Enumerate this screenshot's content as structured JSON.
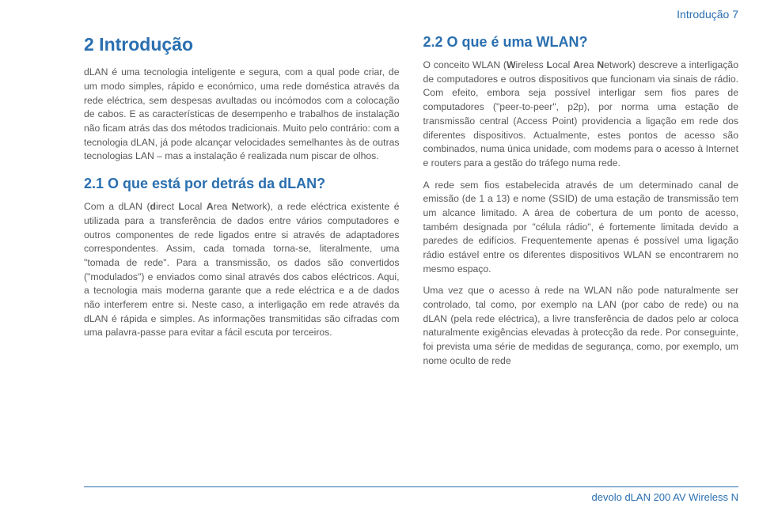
{
  "header": {
    "section": "Introdução",
    "page_number": "7"
  },
  "h1": "2 Introdução",
  "p1": "dLAN é uma tecnologia inteligente e segura, com a qual pode criar, de um modo simples, rápido e económico, uma rede doméstica através da rede eléctrica, sem despesas avultadas ou incómodos com a colocação de cabos. E as características de desempenho e trabalhos de instalação não ficam atrás das dos métodos tradicionais. Muito pelo contrário: com a tecnologia dLAN, já pode alcançar velocidades semelhantes às de outras tecnologias LAN – mas a instalação é realizada num piscar de olhos.",
  "h2a": "2.1 O que está por detrás da dLAN?",
  "p2_pre": "Com a dLAN (",
  "p2_d": "d",
  "p2_mid1": "irect ",
  "p2_l": "L",
  "p2_mid2": "ocal ",
  "p2_a": "A",
  "p2_mid3": "rea ",
  "p2_n": "N",
  "p2_post": "etwork), a rede eléctrica existente é utilizada para a transferência de dados entre vários computadores e outros componentes de rede ligados entre si através de adaptadores correspondentes. Assim, cada tomada torna-se, literalmente, uma \"tomada de rede\". Para a transmissão, os dados são convertidos (\"modulados\") e enviados como sinal através dos cabos eléctricos. Aqui, a tecnologia mais moderna garante que a rede eléctrica e a de dados não interferem entre si. Neste caso, a interligação em rede através da dLAN é rápida e simples. As informações transmitidas são cifradas com uma palavra-passe para evitar a fácil escuta por terceiros.",
  "h2b": "2.2 O que é uma WLAN?",
  "p3_pre": "O conceito WLAN (",
  "p3_w": "W",
  "p3_mid1": "ireless ",
  "p3_l": "L",
  "p3_mid2": "ocal ",
  "p3_a": "A",
  "p3_mid3": "rea ",
  "p3_n": "N",
  "p3_post": "etwork) descreve a interligação de computadores e outros dispositivos que funcionam via sinais de rádio. Com efeito, embora seja possível interligar sem fios pares de computadores (\"peer-to-peer\", p2p), por norma uma estação de transmissão central (Access Point) providencia a ligação em rede dos diferentes dispositivos. Actualmente, estes pontos de acesso são combinados, numa única unidade, com modems para o acesso à Internet e routers para a gestão do tráfego numa rede.",
  "p4": "A rede sem fios estabelecida através de um determinado canal de emissão (de 1 a 13) e nome (SSID) de uma estação de transmissão tem um alcance limitado. A área de cobertura de um ponto de acesso, também designada por \"célula rádio\", é fortemente limitada devido a paredes de edifícios. Frequentemente apenas é possível uma ligação rádio estável entre os diferentes dispositivos WLAN se encontrarem no mesmo espaço.",
  "p5": "Uma vez que o acesso à rede na WLAN não pode naturalmente ser controlado, tal como, por exemplo na LAN (por cabo de rede) ou na dLAN (pela rede eléctrica), a livre transferência de dados pelo ar coloca naturalmente exigências elevadas à protecção da rede. Por conseguinte, foi prevista uma série de medidas de segurança, como, por exemplo, um nome oculto de rede",
  "footer": "devolo dLAN 200 AV Wireless N"
}
